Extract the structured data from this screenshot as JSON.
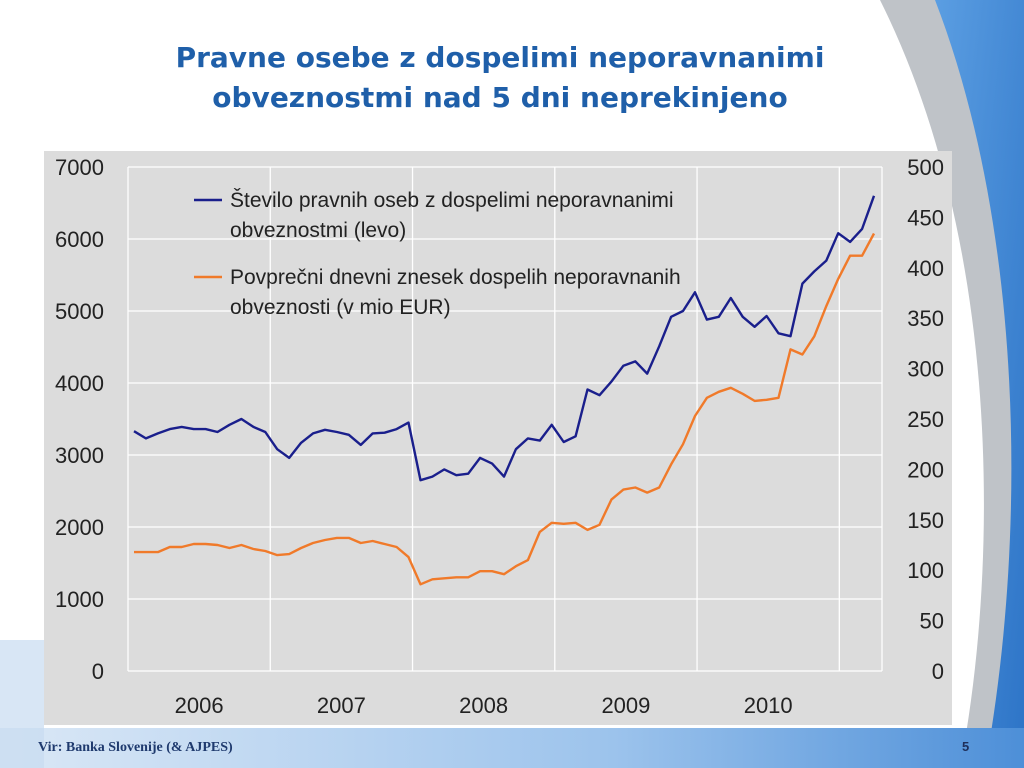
{
  "slide": {
    "title_line1": "Pravne osebe z dospelimi neporavnanimi",
    "title_line2": "obveznostmi nad 5 dni neprekinjeno",
    "source": "Vir: Banka Slovenije (& AJPES)",
    "page_number": "5"
  },
  "colors": {
    "title": "#1f5fa9",
    "plot_background": "#dcdcdc",
    "series_count": "#1a1f8c",
    "series_amount": "#f07a2a"
  },
  "chart_data": {
    "type": "line",
    "x_tick_labels": [
      "2006",
      "2007",
      "2008",
      "2009",
      "2010"
    ],
    "y_left": {
      "lim": [
        0,
        7000
      ],
      "ticks": [
        "0",
        "1000",
        "2000",
        "3000",
        "4000",
        "5000",
        "6000",
        "7000"
      ]
    },
    "y_right": {
      "lim": [
        0,
        500
      ],
      "ticks": [
        "0",
        "50",
        "100",
        "150",
        "200",
        "250",
        "300",
        "350",
        "400",
        "450",
        "500"
      ]
    },
    "grid": true,
    "legend_position": "top-left",
    "series": [
      {
        "name_line1": "Število pravnih oseb z dospelimi neporavnanimi",
        "name_line2": "obveznostmi (levo)",
        "axis": "left",
        "values": [
          3330,
          3230,
          3300,
          3360,
          3390,
          3360,
          3360,
          3320,
          3420,
          3500,
          3390,
          3320,
          3080,
          2960,
          3170,
          3300,
          3350,
          3320,
          3280,
          3140,
          3300,
          3310,
          3360,
          3450,
          2650,
          2700,
          2800,
          2720,
          2740,
          2960,
          2880,
          2700,
          3080,
          3230,
          3200,
          3420,
          3180,
          3260,
          3910,
          3830,
          4020,
          4240,
          4300,
          4130,
          4510,
          4920,
          5000,
          5260,
          4880,
          4920,
          5180,
          4920,
          4780,
          4930,
          4690,
          4650,
          5380,
          5550,
          5700,
          6080,
          5960,
          6140,
          6600
        ]
      },
      {
        "name_line1": "Povprečni dnevni znesek dospelih neporavnanih",
        "name_line2": "obveznosti (v mio EUR)",
        "axis": "right",
        "values": [
          118,
          118,
          118,
          123,
          123,
          126,
          126,
          125,
          122,
          125,
          121,
          119,
          115,
          116,
          122,
          127,
          130,
          132,
          132,
          127,
          129,
          126,
          123,
          113,
          86,
          91,
          92,
          93,
          93,
          99,
          99,
          96,
          104,
          110,
          138,
          147,
          146,
          147,
          140,
          145,
          170,
          180,
          182,
          177,
          182,
          205,
          225,
          253,
          271,
          277,
          281,
          275,
          268,
          269,
          271,
          319,
          314,
          332,
          362,
          389,
          412,
          412,
          434
        ]
      }
    ]
  }
}
